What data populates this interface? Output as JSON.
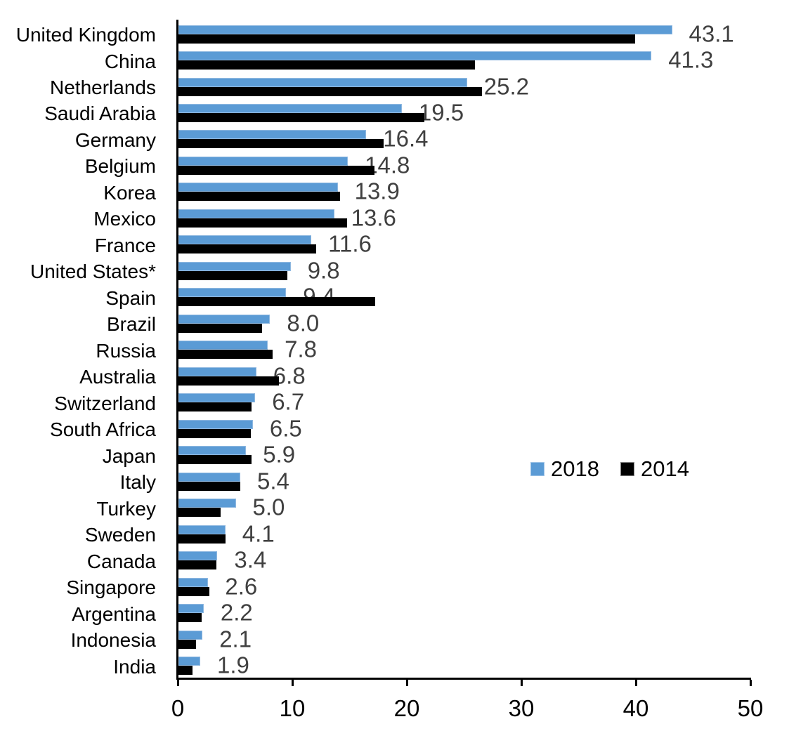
{
  "chart_data": {
    "type": "bar",
    "orientation": "horizontal",
    "title": "",
    "xlabel": "",
    "ylabel": "",
    "xlim": [
      0,
      50
    ],
    "x_ticks": [
      0,
      10,
      20,
      30,
      40,
      50
    ],
    "grid": false,
    "legend_position": "middle-right",
    "categories": [
      "United Kingdom",
      "China",
      "Netherlands",
      "Saudi Arabia",
      "Germany",
      "Belgium",
      "Korea",
      "Mexico",
      "France",
      "United States*",
      "Spain",
      "Brazil",
      "Russia",
      "Australia",
      "Switzerland",
      "South Africa",
      "Japan",
      "Italy",
      "Turkey",
      "Sweden",
      "Canada",
      "Singapore",
      "Argentina",
      "Indonesia",
      "India"
    ],
    "series": [
      {
        "name": "2018",
        "color": "#5B9BD5",
        "values": [
          43.1,
          41.3,
          25.2,
          19.5,
          16.4,
          14.8,
          13.9,
          13.6,
          11.6,
          9.8,
          9.4,
          8.0,
          7.8,
          6.8,
          6.7,
          6.5,
          5.9,
          5.4,
          5.0,
          4.1,
          3.4,
          2.6,
          2.2,
          2.1,
          1.9
        ]
      },
      {
        "name": "2014",
        "color": "#000000",
        "values": [
          39.9,
          25.9,
          26.5,
          21.5,
          17.9,
          17.1,
          14.1,
          14.7,
          12.0,
          9.5,
          17.2,
          7.3,
          8.2,
          8.8,
          6.4,
          6.3,
          6.4,
          5.4,
          3.7,
          4.1,
          3.3,
          2.7,
          2.0,
          1.5,
          1.2
        ]
      }
    ],
    "data_labels": [
      "43.1",
      "41.3",
      "25.2",
      "19.5",
      "16.4",
      "14.8",
      "13.9",
      "13.6",
      "11.6",
      "9.8",
      "9.4",
      "8.0",
      "7.8",
      "6.8",
      "6.7",
      "6.5",
      "5.9",
      "5.4",
      "5.0",
      "4.1",
      "3.4",
      "2.6",
      "2.2",
      "2.1",
      "1.9"
    ],
    "data_labels_series": "2018",
    "tick_labels": [
      "0",
      "10",
      "20",
      "30",
      "40",
      "50"
    ]
  },
  "legend": {
    "items": [
      {
        "label": "2018",
        "color": "#5B9BD5"
      },
      {
        "label": "2014",
        "color": "#000000"
      }
    ]
  }
}
